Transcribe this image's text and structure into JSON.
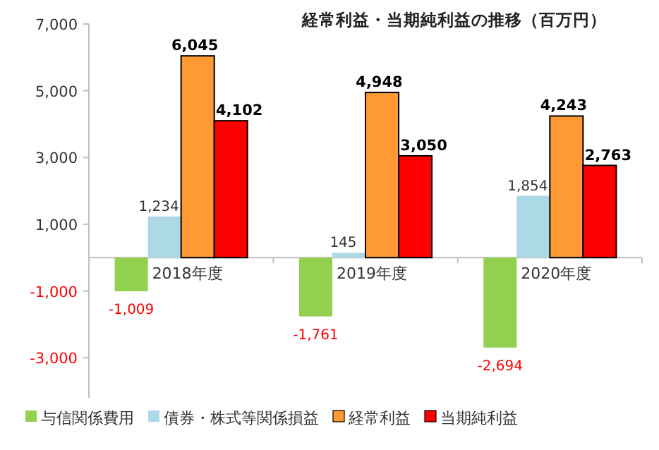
{
  "chart_data": {
    "type": "bar",
    "title": "経常利益・当期純利益の推移（百万円）",
    "categories": [
      "2018年度",
      "2019年度",
      "2020年度"
    ],
    "series": [
      {
        "name": "与信関係費用",
        "color": "#92d050",
        "values": [
          -1009,
          -1761,
          -2694
        ],
        "value_labels": [
          "-1,009",
          "-1,761",
          "-2,694"
        ]
      },
      {
        "name": "債券・株式等関係損益",
        "color": "#add8e6",
        "values": [
          1234,
          145,
          1854
        ],
        "value_labels": [
          "1,234",
          "145",
          "1,854"
        ]
      },
      {
        "name": "経常利益",
        "color": "#ff9933",
        "values": [
          6045,
          4948,
          4243
        ],
        "value_labels": [
          "6,045",
          "4,948",
          "4,243"
        ]
      },
      {
        "name": "当期純利益",
        "color": "#ff0000",
        "values": [
          4102,
          3050,
          2763
        ],
        "value_labels": [
          "4,102",
          "3,050",
          "2,763"
        ]
      }
    ],
    "ylim": [
      -4200,
      7000
    ],
    "yticks": [
      {
        "value": -3000,
        "label": "-3,000"
      },
      {
        "value": -1000,
        "label": "-1,000"
      },
      {
        "value": 1000,
        "label": "1,000"
      },
      {
        "value": 3000,
        "label": "3,000"
      },
      {
        "value": 5000,
        "label": "5,000"
      },
      {
        "value": 7000,
        "label": "7,000"
      }
    ],
    "grid": false,
    "legend": "bottom"
  }
}
